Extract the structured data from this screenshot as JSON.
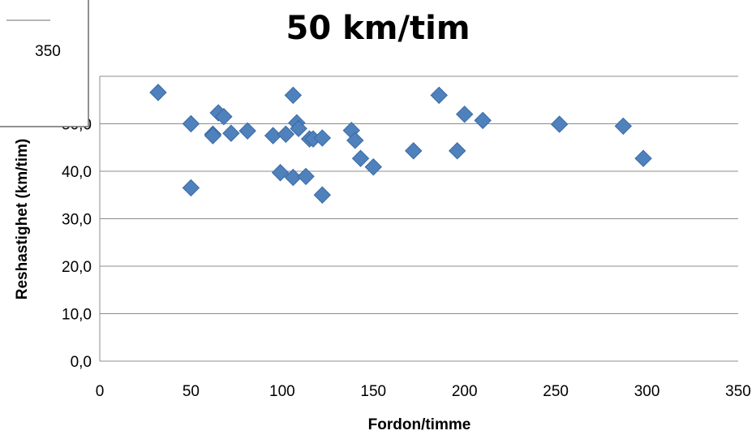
{
  "chart_data": {
    "type": "scatter",
    "title": "50 km/tim",
    "xlabel": "Fordon/timme",
    "ylabel": "Reshastighet (km/tim)",
    "xlim": [
      0,
      350
    ],
    "ylim": [
      0,
      60
    ],
    "xticks": [
      "0",
      "50",
      "100",
      "150",
      "200",
      "250",
      "300",
      "350"
    ],
    "yticks": [
      "0,0",
      "10,0",
      "20,0",
      "30,0",
      "40,0",
      "50,0"
    ],
    "grid": true,
    "marker": "diamond",
    "color": "#4f81bd",
    "points": [
      {
        "x": 32,
        "y": 56.6
      },
      {
        "x": 50,
        "y": 50.0
      },
      {
        "x": 50,
        "y": 36.5
      },
      {
        "x": 62,
        "y": 47.8
      },
      {
        "x": 62,
        "y": 47.5
      },
      {
        "x": 65,
        "y": 52.3
      },
      {
        "x": 68,
        "y": 51.5
      },
      {
        "x": 72,
        "y": 48.0
      },
      {
        "x": 81,
        "y": 48.5
      },
      {
        "x": 95,
        "y": 47.5
      },
      {
        "x": 99,
        "y": 39.7
      },
      {
        "x": 102,
        "y": 47.8
      },
      {
        "x": 106,
        "y": 56.0
      },
      {
        "x": 106,
        "y": 38.7
      },
      {
        "x": 108,
        "y": 50.2
      },
      {
        "x": 109,
        "y": 49.0
      },
      {
        "x": 113,
        "y": 38.9
      },
      {
        "x": 115,
        "y": 46.8
      },
      {
        "x": 117,
        "y": 46.8
      },
      {
        "x": 122,
        "y": 47.0
      },
      {
        "x": 122,
        "y": 35.0
      },
      {
        "x": 138,
        "y": 48.6
      },
      {
        "x": 140,
        "y": 46.5
      },
      {
        "x": 143,
        "y": 42.7
      },
      {
        "x": 150,
        "y": 40.9
      },
      {
        "x": 172,
        "y": 44.3
      },
      {
        "x": 186,
        "y": 56.0
      },
      {
        "x": 196,
        "y": 44.3
      },
      {
        "x": 200,
        "y": 52.0
      },
      {
        "x": 210,
        "y": 50.7
      },
      {
        "x": 252,
        "y": 49.9
      },
      {
        "x": 287,
        "y": 49.5
      },
      {
        "x": 298,
        "y": 42.7
      }
    ]
  },
  "popup": {
    "value": "350"
  }
}
